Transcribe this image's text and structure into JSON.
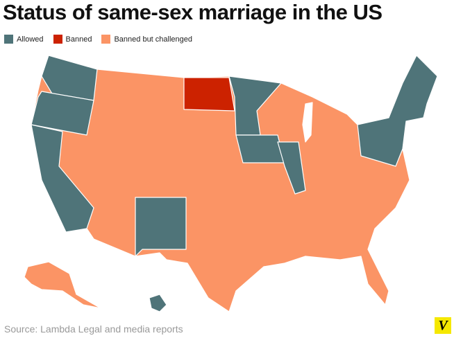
{
  "header": {
    "title": "Status of same-sex marriage in the US"
  },
  "legend": [
    {
      "label": "Allowed",
      "color": "#4f7479"
    },
    {
      "label": "Banned",
      "color": "#cc2200"
    },
    {
      "label": "Banned but challenged",
      "color": "#fb9465"
    }
  ],
  "footer": {
    "source": "Source: Lambda Legal and media reports",
    "logo": "V"
  }
}
